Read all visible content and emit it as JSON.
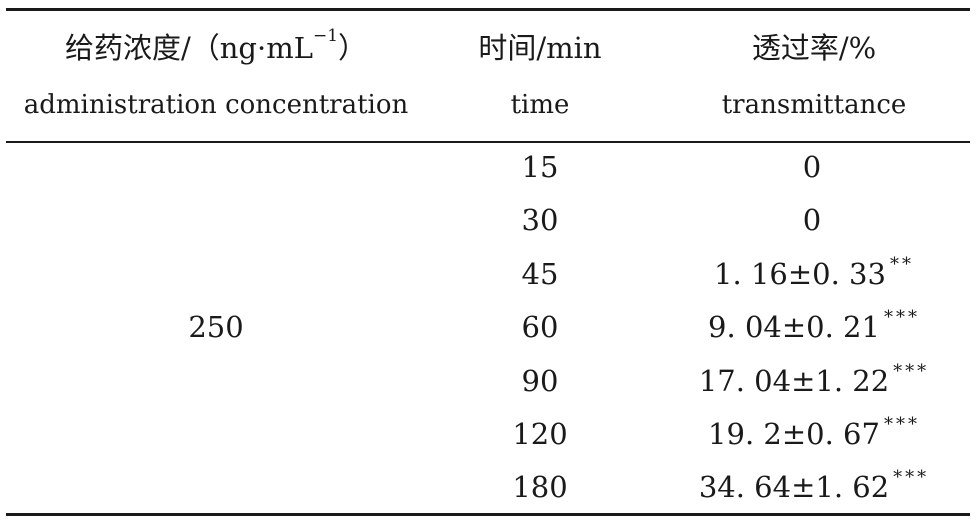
{
  "table": {
    "headers": [
      {
        "cn_pre": "给药浓度/（ng·mL",
        "cn_sup": "−1",
        "cn_post": "）",
        "en": "administration concentration"
      },
      {
        "cn_pre": "时间/min",
        "cn_sup": "",
        "cn_post": "",
        "en": "time"
      },
      {
        "cn_pre": "透过率/%",
        "cn_sup": "",
        "cn_post": "",
        "en": "transmittance"
      }
    ],
    "concentration": "250",
    "rows": [
      {
        "time": "15",
        "value": "0",
        "stars": ""
      },
      {
        "time": "30",
        "value": "0",
        "stars": ""
      },
      {
        "time": "45",
        "value": "1. 16±0. 33",
        "stars": "**"
      },
      {
        "time": "60",
        "value": "9. 04±0. 21",
        "stars": "***"
      },
      {
        "time": "90",
        "value": "17. 04±1. 22",
        "stars": "***"
      },
      {
        "time": "120",
        "value": "19. 2±0. 67",
        "stars": "***"
      },
      {
        "time": "180",
        "value": "34. 64±1. 62",
        "stars": "***"
      }
    ]
  }
}
